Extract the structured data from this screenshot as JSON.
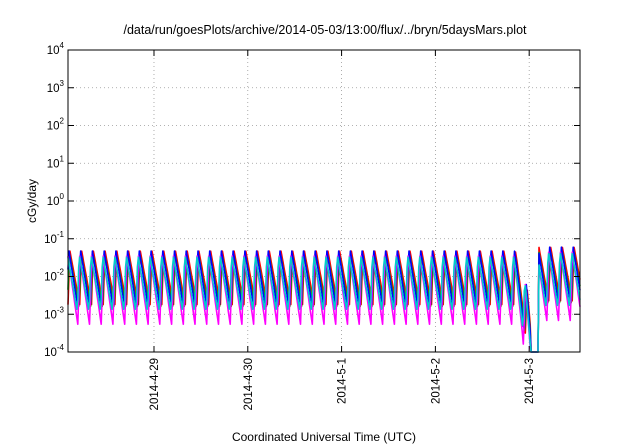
{
  "chart_data": {
    "type": "line",
    "title": "/data/run/goesPlots/archive/2014-05-03/13:00/flux/../bryn/5daysMars.plot",
    "xlabel": "Coordinated Universal Time (UTC)",
    "ylabel": "cGy/day",
    "yscale": "log",
    "ylim": [
      0.0001,
      10000
    ],
    "xlim": [
      "2014-04-28T02:00",
      "2014-05-03T13:00"
    ],
    "grid": true,
    "legend": "none",
    "y_ticks": [
      {
        "base": "10",
        "exp": "-4"
      },
      {
        "base": "10",
        "exp": "-3"
      },
      {
        "base": "10",
        "exp": "-2"
      },
      {
        "base": "10",
        "exp": "-1"
      },
      {
        "base": "10",
        "exp": "0"
      },
      {
        "base": "10",
        "exp": "1"
      },
      {
        "base": "10",
        "exp": "2"
      },
      {
        "base": "10",
        "exp": "3"
      },
      {
        "base": "10",
        "exp": "4"
      }
    ],
    "x_ticks": [
      "2014-4-29",
      "2014-4-30",
      "2014-5-1",
      "2014-5-2",
      "2014-5-3"
    ],
    "x_tick_times": [
      "2014-04-29T00:00",
      "2014-04-30T00:00",
      "2014-05-01T00:00",
      "2014-05-02T00:00",
      "2014-05-03T00:00"
    ],
    "oscillation_period_hours": 3,
    "dropout_hours": [
      "2014-05-03T00:30",
      "2014-05-03T02:30"
    ],
    "series": [
      {
        "color": "#ff0000",
        "peak": 0.05,
        "trough": 0.0018
      },
      {
        "color": "#00aa00",
        "peak": 0.045,
        "trough": 0.0014
      },
      {
        "color": "#0000ff",
        "peak": 0.055,
        "trough": 0.0012
      },
      {
        "color": "#ff00ff",
        "peak": 0.035,
        "trough": 0.0005
      },
      {
        "color": "#00cccc",
        "peak": 0.04,
        "trough": 0.0011
      }
    ]
  }
}
